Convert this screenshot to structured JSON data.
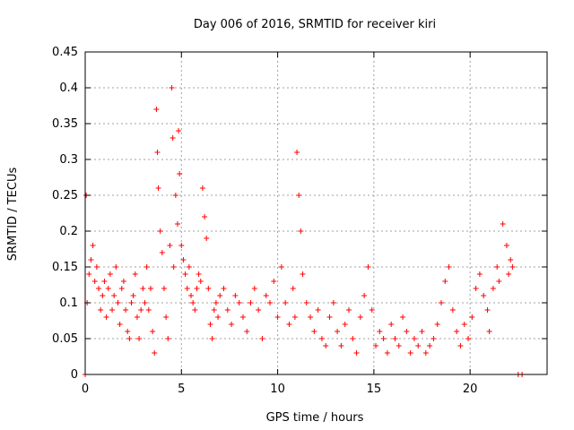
{
  "chart_data": {
    "type": "scatter",
    "title": "Day 006 of 2016, SRMTID for receiver kiri",
    "xlabel": "GPS time / hours",
    "ylabel": "SRMTID / TECUs",
    "xlim": [
      0,
      24
    ],
    "ylim": [
      0,
      0.45
    ],
    "grid": true,
    "marker": "plus",
    "series_color": "#ff0000",
    "x_ticks": [
      {
        "value": 0,
        "label": "0"
      },
      {
        "value": 5,
        "label": "5"
      },
      {
        "value": 10,
        "label": "10"
      },
      {
        "value": 15,
        "label": "15"
      },
      {
        "value": 20,
        "label": "20"
      }
    ],
    "y_ticks": [
      {
        "value": 0,
        "label": "0"
      },
      {
        "value": 0.05,
        "label": "0.05"
      },
      {
        "value": 0.1,
        "label": "0.1"
      },
      {
        "value": 0.15,
        "label": "0.15"
      },
      {
        "value": 0.2,
        "label": "0.2"
      },
      {
        "value": 0.25,
        "label": "0.25"
      },
      {
        "value": 0.3,
        "label": "0.3"
      },
      {
        "value": 0.35,
        "label": "0.35"
      },
      {
        "value": 0.4,
        "label": "0.4"
      },
      {
        "value": 0.45,
        "label": "0.45"
      }
    ],
    "series": [
      {
        "name": "SRMTID",
        "x": [
          0.0,
          0.05,
          0.1,
          0.2,
          0.3,
          0.4,
          0.5,
          0.6,
          0.7,
          0.8,
          0.9,
          1.0,
          1.1,
          1.2,
          1.3,
          1.4,
          1.5,
          1.6,
          1.7,
          1.8,
          1.9,
          2.0,
          2.1,
          2.2,
          2.3,
          2.4,
          2.5,
          2.6,
          2.7,
          2.8,
          2.9,
          3.0,
          3.1,
          3.2,
          3.3,
          3.4,
          3.5,
          3.6,
          3.7,
          3.75,
          3.8,
          3.9,
          4.0,
          4.1,
          4.2,
          4.3,
          4.4,
          4.5,
          4.55,
          4.6,
          4.7,
          4.8,
          4.85,
          4.9,
          5.0,
          5.1,
          5.2,
          5.3,
          5.4,
          5.5,
          5.6,
          5.7,
          5.8,
          5.9,
          6.0,
          6.1,
          6.2,
          6.3,
          6.4,
          6.5,
          6.6,
          6.7,
          6.8,
          6.9,
          7.0,
          7.2,
          7.4,
          7.6,
          7.8,
          8.0,
          8.2,
          8.4,
          8.6,
          8.8,
          9.0,
          9.2,
          9.4,
          9.6,
          9.8,
          10.0,
          10.2,
          10.4,
          10.6,
          10.8,
          10.9,
          11.0,
          11.1,
          11.2,
          11.3,
          11.5,
          11.7,
          11.9,
          12.1,
          12.3,
          12.5,
          12.7,
          12.9,
          13.1,
          13.3,
          13.5,
          13.7,
          13.9,
          14.1,
          14.3,
          14.5,
          14.7,
          14.9,
          15.1,
          15.3,
          15.5,
          15.7,
          15.9,
          16.1,
          16.3,
          16.5,
          16.7,
          16.9,
          17.1,
          17.3,
          17.5,
          17.7,
          17.9,
          18.1,
          18.3,
          18.5,
          18.7,
          18.9,
          19.1,
          19.3,
          19.5,
          19.7,
          19.9,
          20.1,
          20.3,
          20.5,
          20.7,
          20.9,
          21.0,
          21.2,
          21.4,
          21.5,
          21.7,
          21.9,
          22.0,
          22.1,
          22.2,
          22.5,
          22.7
        ],
        "y": [
          0.0,
          0.25,
          0.1,
          0.14,
          0.16,
          0.18,
          0.13,
          0.15,
          0.12,
          0.09,
          0.11,
          0.13,
          0.08,
          0.12,
          0.14,
          0.09,
          0.11,
          0.15,
          0.1,
          0.07,
          0.12,
          0.13,
          0.09,
          0.06,
          0.05,
          0.1,
          0.11,
          0.14,
          0.08,
          0.05,
          0.09,
          0.12,
          0.1,
          0.15,
          0.09,
          0.12,
          0.06,
          0.03,
          0.37,
          0.31,
          0.26,
          0.2,
          0.17,
          0.12,
          0.08,
          0.05,
          0.18,
          0.4,
          0.33,
          0.15,
          0.25,
          0.21,
          0.34,
          0.28,
          0.18,
          0.16,
          0.14,
          0.12,
          0.15,
          0.11,
          0.1,
          0.09,
          0.12,
          0.14,
          0.13,
          0.26,
          0.22,
          0.19,
          0.12,
          0.07,
          0.05,
          0.09,
          0.1,
          0.08,
          0.11,
          0.12,
          0.09,
          0.07,
          0.11,
          0.1,
          0.08,
          0.06,
          0.1,
          0.12,
          0.09,
          0.05,
          0.11,
          0.1,
          0.13,
          0.08,
          0.15,
          0.1,
          0.07,
          0.12,
          0.08,
          0.31,
          0.25,
          0.2,
          0.14,
          0.1,
          0.08,
          0.06,
          0.09,
          0.05,
          0.04,
          0.08,
          0.1,
          0.06,
          0.04,
          0.07,
          0.09,
          0.05,
          0.03,
          0.08,
          0.11,
          0.15,
          0.09,
          0.04,
          0.06,
          0.05,
          0.03,
          0.07,
          0.05,
          0.04,
          0.08,
          0.06,
          0.03,
          0.05,
          0.04,
          0.06,
          0.03,
          0.04,
          0.05,
          0.07,
          0.1,
          0.13,
          0.15,
          0.09,
          0.06,
          0.04,
          0.07,
          0.05,
          0.08,
          0.12,
          0.14,
          0.11,
          0.09,
          0.06,
          0.12,
          0.15,
          0.13,
          0.21,
          0.18,
          0.14,
          0.16,
          0.15,
          0.0,
          0.0
        ]
      }
    ]
  }
}
